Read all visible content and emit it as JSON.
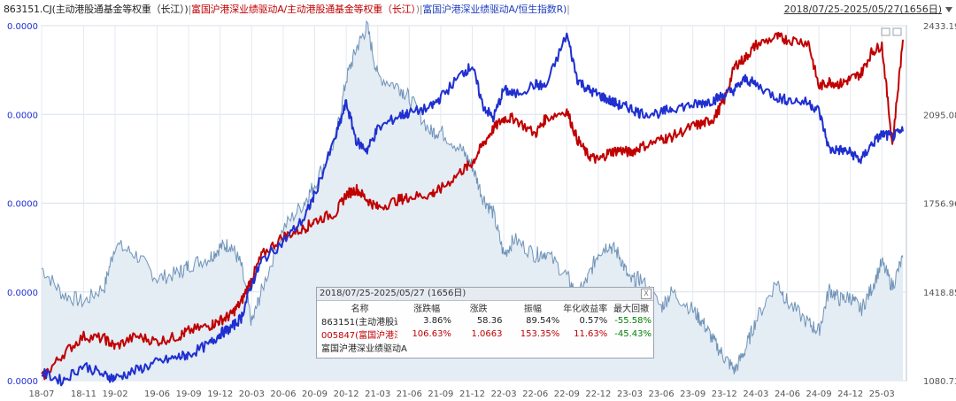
{
  "header": {
    "legend": [
      {
        "text": "863151.CJ(主动港股通基金等权重（长江）)",
        "color": "#222222"
      },
      {
        "text": "|",
        "color": "#888888"
      },
      {
        "text": "富国沪港深业绩驱动A/主动港股通基金等权重（长江）",
        "color": "#c00000"
      },
      {
        "text": ")",
        "color": "#888888"
      },
      {
        "text": "|",
        "color": "#888888"
      },
      {
        "text": "富国沪港深业绩驱动A/恒生指数R)",
        "color": "#1f3fbf"
      },
      {
        "text": "|",
        "color": "#888888"
      }
    ],
    "range": "2018/07/25-2025/05/27(1656日)"
  },
  "popup": {
    "title": "2018/07/25-2025/05/27 (1656日)",
    "close": "X",
    "headers": [
      "名称",
      "涨跌幅",
      "涨跌",
      "振幅",
      "年化收益率",
      "最大回撤"
    ],
    "rows": [
      {
        "name": "863151(主动港股通基",
        "change_pct": "3.86%",
        "change": "58.36",
        "amplitude": "89.54%",
        "annual": "0.57%",
        "drawdown": "-55.58%"
      },
      {
        "name": "005847(富国沪港深业",
        "change_pct": "106.63%",
        "change": "1.0663",
        "amplitude": "153.35%",
        "annual": "11.63%",
        "drawdown": "-45.43%"
      },
      {
        "name": "富国沪港深业绩驱动A",
        "change_pct": "",
        "change": "",
        "amplitude": "",
        "annual": "",
        "drawdown": ""
      }
    ]
  },
  "chart_data": {
    "type": "line",
    "x_ticks": [
      "18-07",
      "18-11",
      "19-02",
      "19-06",
      "19-09",
      "19-12",
      "20-03",
      "20-06",
      "20-09",
      "20-12",
      "21-03",
      "21-06",
      "21-09",
      "21-12",
      "22-03",
      "22-06",
      "22-09",
      "22-12",
      "23-03",
      "23-06",
      "23-09",
      "23-12",
      "24-03",
      "24-06",
      "24-09",
      "24-12",
      "25-03"
    ],
    "left_axis_labels": [
      "0.0000",
      "0.0000",
      "0.0000",
      "0.0000",
      "0.0000"
    ],
    "right_axis_labels": [
      "2433.19",
      "2095.08",
      "1756.96",
      "1418.85",
      "1080.73"
    ],
    "right_ylim": [
      1080.73,
      2433.19
    ],
    "grid": true,
    "series": [
      {
        "name": "863151.CJ(主动港股通基金等权重（长江）)",
        "style": "area",
        "color": "#6f93b8",
        "fill": "#e4ecf4",
        "points": [
          [
            "18-07",
            1510
          ],
          [
            "18-09",
            1410
          ],
          [
            "18-11",
            1380
          ],
          [
            "19-01",
            1440
          ],
          [
            "19-02",
            1600
          ],
          [
            "19-04",
            1560
          ],
          [
            "19-06",
            1470
          ],
          [
            "19-08",
            1490
          ],
          [
            "19-09",
            1520
          ],
          [
            "19-11",
            1550
          ],
          [
            "19-12",
            1590
          ],
          [
            "20-01",
            1600
          ],
          [
            "20-02",
            1520
          ],
          [
            "20-03",
            1300
          ],
          [
            "20-04",
            1430
          ],
          [
            "20-06",
            1660
          ],
          [
            "20-08",
            1760
          ],
          [
            "20-09",
            1830
          ],
          [
            "20-11",
            2000
          ],
          [
            "20-12",
            2230
          ],
          [
            "21-01",
            2350
          ],
          [
            "21-02",
            2430
          ],
          [
            "21-03",
            2240
          ],
          [
            "21-05",
            2200
          ],
          [
            "21-06",
            2160
          ],
          [
            "21-08",
            2030
          ],
          [
            "21-09",
            2030
          ],
          [
            "21-11",
            1960
          ],
          [
            "21-12",
            1900
          ],
          [
            "22-01",
            1780
          ],
          [
            "22-02",
            1720
          ],
          [
            "22-03",
            1560
          ],
          [
            "22-04",
            1620
          ],
          [
            "22-06",
            1560
          ],
          [
            "22-07",
            1570
          ],
          [
            "22-09",
            1480
          ],
          [
            "22-10",
            1400
          ],
          [
            "22-11",
            1470
          ],
          [
            "22-12",
            1570
          ],
          [
            "23-01",
            1600
          ],
          [
            "23-02",
            1560
          ],
          [
            "23-03",
            1460
          ],
          [
            "23-04",
            1470
          ],
          [
            "23-06",
            1360
          ],
          [
            "23-07",
            1420
          ],
          [
            "23-09",
            1350
          ],
          [
            "23-10",
            1300
          ],
          [
            "23-11",
            1230
          ],
          [
            "23-12",
            1170
          ],
          [
            "24-01",
            1120
          ],
          [
            "24-02",
            1200
          ],
          [
            "24-03",
            1310
          ],
          [
            "24-05",
            1460
          ],
          [
            "24-06",
            1380
          ],
          [
            "24-08",
            1300
          ],
          [
            "24-09",
            1270
          ],
          [
            "24-10",
            1430
          ],
          [
            "24-11",
            1390
          ],
          [
            "24-12",
            1400
          ],
          [
            "25-01",
            1350
          ],
          [
            "25-02",
            1430
          ],
          [
            "25-03",
            1530
          ],
          [
            "25-04",
            1440
          ],
          [
            "25-05",
            1550
          ]
        ]
      },
      {
        "name": "富国沪港深业绩驱动A/主动港股通基金等权重（长江）",
        "style": "line",
        "color": "#c00000",
        "points": [
          [
            "18-07",
            1090
          ],
          [
            "18-09",
            1180
          ],
          [
            "18-11",
            1250
          ],
          [
            "19-01",
            1240
          ],
          [
            "19-02",
            1210
          ],
          [
            "19-04",
            1250
          ],
          [
            "19-06",
            1230
          ],
          [
            "19-08",
            1250
          ],
          [
            "19-09",
            1270
          ],
          [
            "19-11",
            1290
          ],
          [
            "19-12",
            1310
          ],
          [
            "20-01",
            1330
          ],
          [
            "20-02",
            1380
          ],
          [
            "20-03",
            1470
          ],
          [
            "20-04",
            1560
          ],
          [
            "20-06",
            1630
          ],
          [
            "20-08",
            1660
          ],
          [
            "20-09",
            1690
          ],
          [
            "20-11",
            1720
          ],
          [
            "20-12",
            1790
          ],
          [
            "21-01",
            1810
          ],
          [
            "21-02",
            1770
          ],
          [
            "21-03",
            1740
          ],
          [
            "21-05",
            1770
          ],
          [
            "21-06",
            1780
          ],
          [
            "21-08",
            1790
          ],
          [
            "21-09",
            1810
          ],
          [
            "21-11",
            1880
          ],
          [
            "21-12",
            1910
          ],
          [
            "22-01",
            1980
          ],
          [
            "22-02",
            2040
          ],
          [
            "22-03",
            2080
          ],
          [
            "22-04",
            2080
          ],
          [
            "22-06",
            2020
          ],
          [
            "22-07",
            2080
          ],
          [
            "22-09",
            2110
          ],
          [
            "22-10",
            2000
          ],
          [
            "22-11",
            1940
          ],
          [
            "22-12",
            1920
          ],
          [
            "23-01",
            1950
          ],
          [
            "23-02",
            1960
          ],
          [
            "23-03",
            1950
          ],
          [
            "23-04",
            1970
          ],
          [
            "23-06",
            2000
          ],
          [
            "23-07",
            2010
          ],
          [
            "23-09",
            2050
          ],
          [
            "23-10",
            2060
          ],
          [
            "23-11",
            2080
          ],
          [
            "23-12",
            2150
          ],
          [
            "24-01",
            2280
          ],
          [
            "24-02",
            2310
          ],
          [
            "24-03",
            2360
          ],
          [
            "24-05",
            2390
          ],
          [
            "24-06",
            2380
          ],
          [
            "24-08",
            2370
          ],
          [
            "24-09",
            2200
          ],
          [
            "24-10",
            2220
          ],
          [
            "24-11",
            2210
          ],
          [
            "24-12",
            2230
          ],
          [
            "25-01",
            2250
          ],
          [
            "25-02",
            2330
          ],
          [
            "25-03",
            2360
          ],
          [
            "25-04",
            1980
          ],
          [
            "25-05",
            2380
          ]
        ]
      },
      {
        "name": "富国沪港深业绩驱动A/恒生指数R",
        "style": "line",
        "color": "#1f2fd0",
        "points": [
          [
            "18-07",
            1110
          ],
          [
            "18-09",
            1080
          ],
          [
            "18-11",
            1140
          ],
          [
            "19-01",
            1100
          ],
          [
            "19-02",
            1090
          ],
          [
            "19-04",
            1120
          ],
          [
            "19-06",
            1150
          ],
          [
            "19-08",
            1170
          ],
          [
            "19-09",
            1180
          ],
          [
            "19-11",
            1220
          ],
          [
            "19-12",
            1260
          ],
          [
            "20-01",
            1280
          ],
          [
            "20-02",
            1320
          ],
          [
            "20-03",
            1450
          ],
          [
            "20-04",
            1540
          ],
          [
            "20-06",
            1610
          ],
          [
            "20-08",
            1700
          ],
          [
            "20-09",
            1790
          ],
          [
            "20-11",
            2010
          ],
          [
            "20-12",
            2140
          ],
          [
            "21-01",
            1990
          ],
          [
            "21-02",
            1960
          ],
          [
            "21-03",
            2040
          ],
          [
            "21-05",
            2090
          ],
          [
            "21-06",
            2100
          ],
          [
            "21-08",
            2120
          ],
          [
            "21-09",
            2160
          ],
          [
            "21-11",
            2250
          ],
          [
            "21-12",
            2280
          ],
          [
            "22-01",
            2130
          ],
          [
            "22-02",
            2080
          ],
          [
            "22-03",
            2190
          ],
          [
            "22-04",
            2170
          ],
          [
            "22-06",
            2210
          ],
          [
            "22-07",
            2200
          ],
          [
            "22-09",
            2400
          ],
          [
            "22-10",
            2230
          ],
          [
            "22-11",
            2190
          ],
          [
            "22-12",
            2170
          ],
          [
            "23-01",
            2150
          ],
          [
            "23-02",
            2130
          ],
          [
            "23-03",
            2120
          ],
          [
            "23-04",
            2100
          ],
          [
            "23-06",
            2100
          ],
          [
            "23-07",
            2120
          ],
          [
            "23-09",
            2130
          ],
          [
            "23-10",
            2140
          ],
          [
            "23-11",
            2150
          ],
          [
            "23-12",
            2170
          ],
          [
            "24-01",
            2190
          ],
          [
            "24-02",
            2230
          ],
          [
            "24-03",
            2210
          ],
          [
            "24-05",
            2160
          ],
          [
            "24-06",
            2150
          ],
          [
            "24-08",
            2140
          ],
          [
            "24-09",
            2110
          ],
          [
            "24-10",
            1960
          ],
          [
            "24-11",
            1960
          ],
          [
            "24-12",
            1950
          ],
          [
            "25-01",
            1920
          ],
          [
            "25-02",
            1980
          ],
          [
            "25-03",
            2020
          ],
          [
            "25-04",
            2010
          ],
          [
            "25-05",
            2030
          ]
        ]
      }
    ]
  }
}
